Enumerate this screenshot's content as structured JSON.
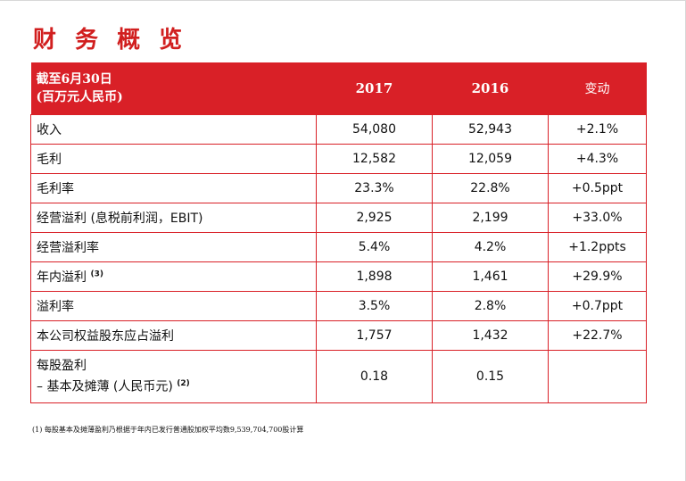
{
  "title": "财 务 概 览",
  "table": {
    "header": {
      "label_line1": "截至6月30日",
      "label_line2": "(百万元人民币)",
      "col_2017": "2017",
      "col_2016": "2016",
      "col_change": "变动"
    },
    "rows": [
      {
        "label": "收入",
        "sup": "",
        "v2017": "54,080",
        "v2016": "52,943",
        "change": "+2.1%"
      },
      {
        "label": "毛利",
        "sup": "",
        "v2017": "12,582",
        "v2016": "12,059",
        "change": "+4.3%"
      },
      {
        "label": "毛利率",
        "sup": "",
        "v2017": "23.3%",
        "v2016": "22.8%",
        "change": "+0.5ppt"
      },
      {
        "label": "经营溢利 (息税前利润，EBIT)",
        "sup": "",
        "v2017": "2,925",
        "v2016": "2,199",
        "change": "+33.0%"
      },
      {
        "label": "经营溢利率",
        "sup": "",
        "v2017": "5.4%",
        "v2016": "4.2%",
        "change": "+1.2ppts"
      },
      {
        "label": "年内溢利",
        "sup": "(3)",
        "v2017": "1,898",
        "v2016": "1,461",
        "change": "+29.9%"
      },
      {
        "label": "溢利率",
        "sup": "",
        "v2017": "3.5%",
        "v2016": "2.8%",
        "change": "+0.7ppt"
      },
      {
        "label": "本公司权益股东应占溢利",
        "sup": "",
        "v2017": "1,757",
        "v2016": "1,432",
        "change": "+22.7%"
      }
    ],
    "eps_row": {
      "label_line1": "每股盈利",
      "label_line2": "– 基本及摊薄 (人民币元)",
      "sup": "(2)",
      "v2017": "0.18",
      "v2016": "0.15",
      "change": ""
    }
  },
  "footnote": "(1)   每股基本及摊薄盈利乃根据于年内已发行普通股加权平均数9,539,704,700股计算",
  "colors": {
    "accent": "#d92027",
    "title": "#d11f1f"
  }
}
